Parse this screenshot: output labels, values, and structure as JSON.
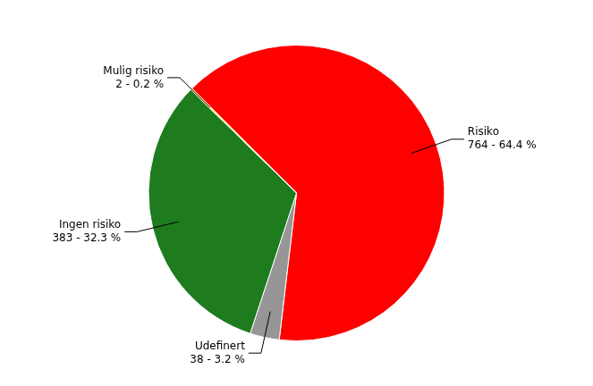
{
  "chart_data": {
    "type": "pie",
    "categories": [
      "Risiko",
      "Udefinert",
      "Ingen risiko",
      "Mulig risiko"
    ],
    "values": [
      764,
      38,
      383,
      2
    ],
    "value_labels": [
      "764 - 64.4 %",
      "38 - 3.2 %",
      "383 - 32.3 %",
      "2 - 0.2 %"
    ],
    "colors": [
      "#ff0000",
      "#969696",
      "#1e7b1e",
      "#ffdd00"
    ],
    "data_labels": true
  }
}
